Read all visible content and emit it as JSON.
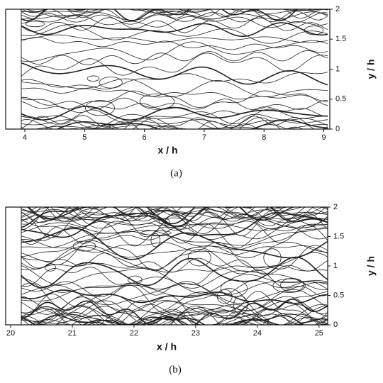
{
  "chart_data": [
    {
      "type": "contour",
      "xlabel": "x / h",
      "ylabel": "y / h",
      "caption": "(a)",
      "xlim": [
        3.68,
        9.1
      ],
      "ylim": [
        0,
        2
      ],
      "xticks": [
        4,
        5,
        6,
        7,
        8,
        9
      ],
      "yticks": [
        0,
        0.5,
        1,
        1.5,
        2
      ]
    },
    {
      "type": "contour",
      "xlabel": "x / h",
      "ylabel": "y / h",
      "caption": "(b)",
      "xlim": [
        19.92,
        25.14
      ],
      "ylim": [
        0,
        2
      ],
      "xticks": [
        20,
        21,
        22,
        23,
        24,
        25
      ],
      "yticks": [
        0,
        0.5,
        1,
        1.5,
        2
      ]
    }
  ]
}
